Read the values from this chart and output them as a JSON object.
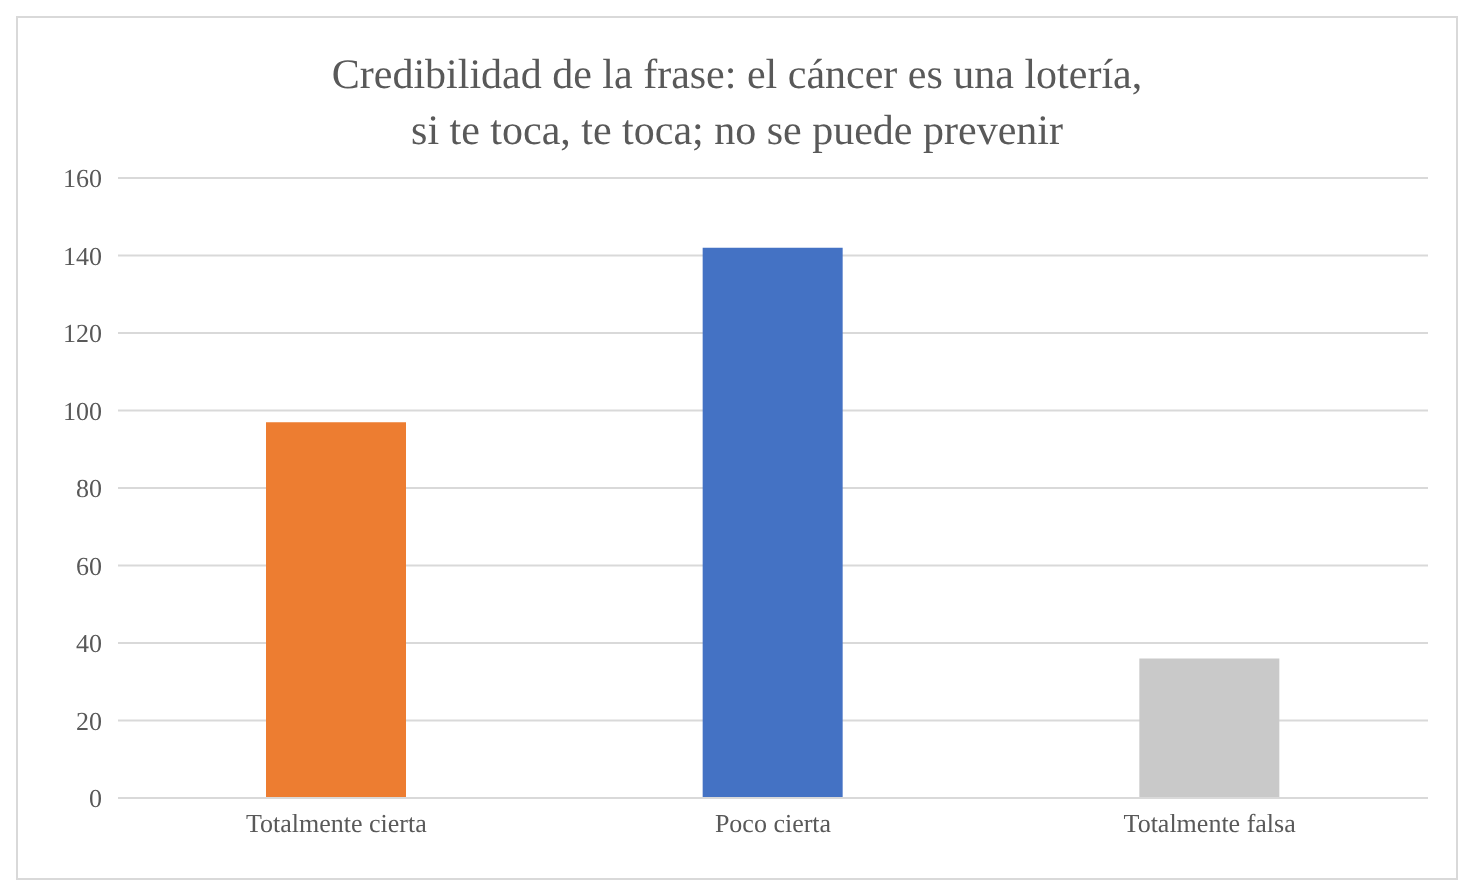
{
  "chart_data": {
    "type": "bar",
    "title": "Credibilidad de la frase: el cáncer es una lotería,\nsi te toca, te toca; no se puede prevenir",
    "categories": [
      "Totalmente cierta",
      "Poco cierta",
      "Totalmente falsa"
    ],
    "values": [
      97,
      142,
      36
    ],
    "colors": [
      "#ed7d31",
      "#4472c4",
      "#c9c9c9"
    ],
    "ylim": [
      0,
      160
    ],
    "yticks": [
      0,
      20,
      40,
      60,
      80,
      100,
      120,
      140,
      160
    ],
    "grid": "y"
  }
}
